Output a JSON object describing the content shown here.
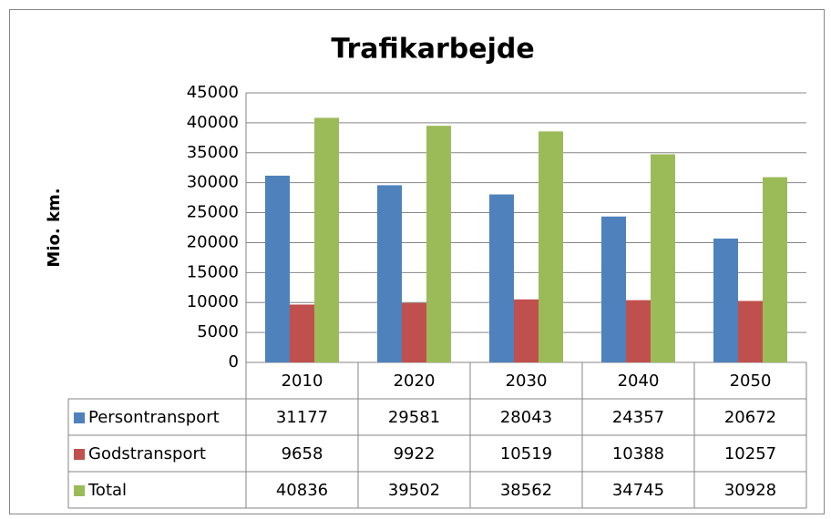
{
  "chart_data": {
    "type": "bar",
    "title": "Trafikarbejde",
    "y_label": "Mio. km.",
    "categories": [
      "2010",
      "2020",
      "2030",
      "2040",
      "2050"
    ],
    "series": [
      {
        "name": "Persontransport",
        "color": "#4f81bd",
        "values": [
          31177,
          29581,
          28043,
          24357,
          20672
        ]
      },
      {
        "name": "Godstransport",
        "color": "#c0504d",
        "values": [
          9658,
          9922,
          10519,
          10388,
          10257
        ]
      },
      {
        "name": "Total",
        "color": "#9bbb59",
        "values": [
          40836,
          39502,
          38562,
          34745,
          30928
        ]
      }
    ],
    "ylim": [
      0,
      45000
    ],
    "yticks": [
      0,
      5000,
      10000,
      15000,
      20000,
      25000,
      30000,
      35000,
      40000,
      45000
    ],
    "grid": true,
    "data_table": true
  }
}
